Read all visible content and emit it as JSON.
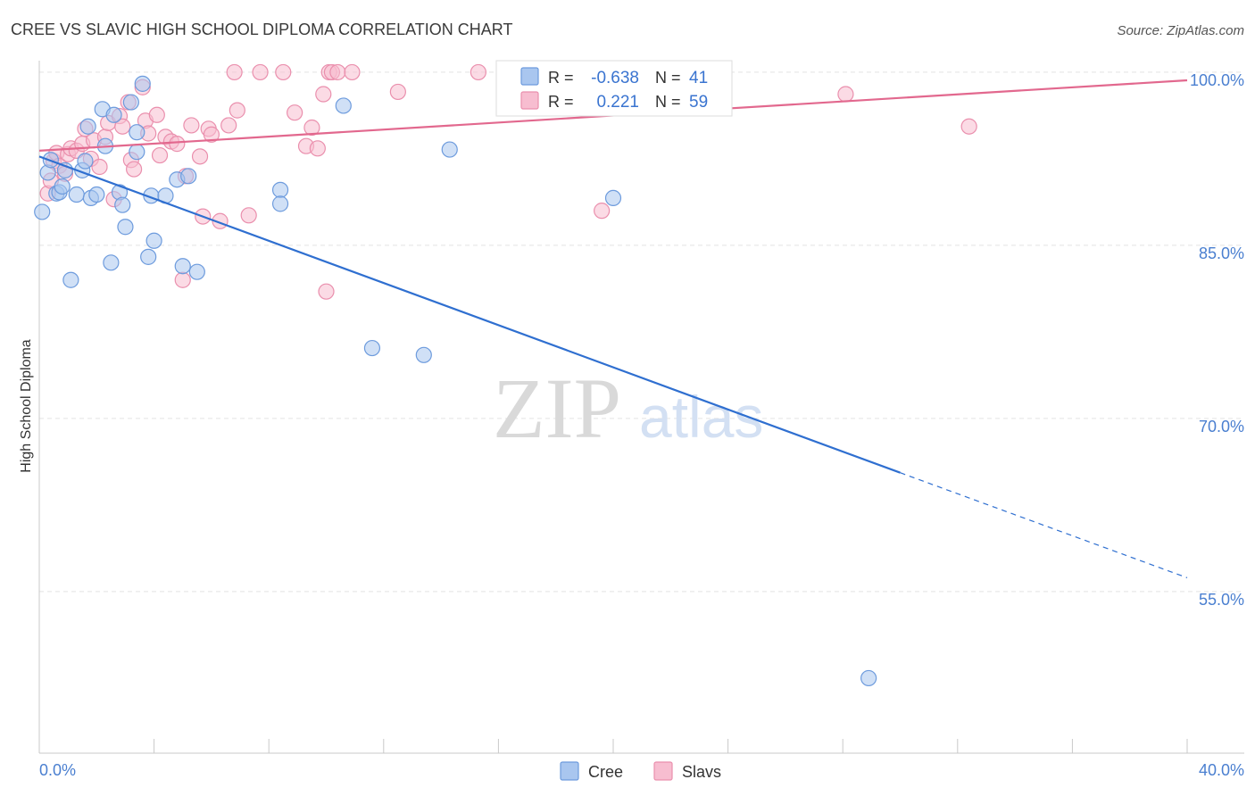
{
  "chart_data": {
    "type": "scatter",
    "title": "CREE VS SLAVIC HIGH SCHOOL DIPLOMA CORRELATION CHART",
    "source": "Source: ZipAtlas.com",
    "xlabel": "",
    "ylabel": "High School Diploma",
    "xlim": [
      0,
      40
    ],
    "ylim": [
      41,
      101
    ],
    "x_tick_labels": [
      "0.0%",
      "40.0%"
    ],
    "y_ticks": [
      55,
      70,
      85,
      100
    ],
    "y_tick_labels": [
      "55.0%",
      "70.0%",
      "85.0%",
      "100.0%"
    ],
    "watermark": {
      "zip": "ZIP",
      "atlas": "atlas"
    },
    "colors": {
      "cree_fill": "#a9c6ef",
      "cree_stroke": "#6d9bdd",
      "cree_line": "#2f6fd0",
      "slavs_fill": "#f7bdd0",
      "slavs_stroke": "#ea8fad",
      "slavs_line": "#e2688e",
      "grid": "#e3e3e3"
    },
    "legend": {
      "r_label": "R =",
      "n_label": "N =",
      "items": [
        {
          "series": "Cree",
          "r": "-0.638",
          "n": "41"
        },
        {
          "series": "Slavs",
          "r": "0.221",
          "n": "59"
        }
      ]
    },
    "series": [
      {
        "name": "Cree",
        "trend": {
          "x0": 0.0,
          "y0": 92.7,
          "x1": 30.0,
          "y1": 65.3,
          "dash_x1": 40.0,
          "dash_y1": 56.2
        },
        "points": [
          [
            0.1,
            87.9
          ],
          [
            0.3,
            91.3
          ],
          [
            0.4,
            92.4
          ],
          [
            0.6,
            89.5
          ],
          [
            0.7,
            89.6
          ],
          [
            0.8,
            90.1
          ],
          [
            0.9,
            91.5
          ],
          [
            1.1,
            82.0
          ],
          [
            1.3,
            89.4
          ],
          [
            1.5,
            91.5
          ],
          [
            1.6,
            92.3
          ],
          [
            1.7,
            95.3
          ],
          [
            1.8,
            89.1
          ],
          [
            2.0,
            89.4
          ],
          [
            2.2,
            96.8
          ],
          [
            2.3,
            93.6
          ],
          [
            2.5,
            83.5
          ],
          [
            2.6,
            96.3
          ],
          [
            2.8,
            89.6
          ],
          [
            2.9,
            88.5
          ],
          [
            3.0,
            86.6
          ],
          [
            3.2,
            97.4
          ],
          [
            3.4,
            93.1
          ],
          [
            3.4,
            94.8
          ],
          [
            3.6,
            99.0
          ],
          [
            3.8,
            84.0
          ],
          [
            3.9,
            89.3
          ],
          [
            4.0,
            85.4
          ],
          [
            4.4,
            89.3
          ],
          [
            4.8,
            90.7
          ],
          [
            5.0,
            83.2
          ],
          [
            5.2,
            91.0
          ],
          [
            5.5,
            82.7
          ],
          [
            8.4,
            89.8
          ],
          [
            8.4,
            88.6
          ],
          [
            10.6,
            97.1
          ],
          [
            11.6,
            76.1
          ],
          [
            13.4,
            75.5
          ],
          [
            14.3,
            93.3
          ],
          [
            20.0,
            89.1
          ],
          [
            28.9,
            47.5
          ]
        ]
      },
      {
        "name": "Slavs",
        "trend": {
          "x0": 0.0,
          "y0": 93.2,
          "x1": 40.0,
          "y1": 99.3
        },
        "points": [
          [
            0.3,
            89.5
          ],
          [
            0.4,
            90.6
          ],
          [
            0.5,
            92.3
          ],
          [
            0.6,
            93.0
          ],
          [
            0.7,
            91.9
          ],
          [
            0.9,
            91.2
          ],
          [
            1.0,
            92.9
          ],
          [
            1.1,
            93.4
          ],
          [
            1.3,
            93.2
          ],
          [
            1.5,
            93.8
          ],
          [
            1.6,
            95.1
          ],
          [
            1.8,
            92.5
          ],
          [
            1.9,
            94.1
          ],
          [
            2.1,
            91.8
          ],
          [
            2.3,
            94.4
          ],
          [
            2.4,
            95.6
          ],
          [
            2.6,
            89.0
          ],
          [
            2.8,
            96.2
          ],
          [
            2.9,
            95.3
          ],
          [
            3.1,
            97.4
          ],
          [
            3.2,
            92.4
          ],
          [
            3.3,
            91.6
          ],
          [
            3.6,
            98.7
          ],
          [
            3.7,
            95.8
          ],
          [
            3.8,
            94.7
          ],
          [
            4.1,
            96.3
          ],
          [
            4.2,
            92.8
          ],
          [
            4.4,
            94.4
          ],
          [
            4.6,
            94.0
          ],
          [
            4.8,
            93.8
          ],
          [
            5.0,
            82.0
          ],
          [
            5.1,
            91.0
          ],
          [
            5.3,
            95.4
          ],
          [
            5.6,
            92.7
          ],
          [
            5.7,
            87.5
          ],
          [
            5.9,
            95.1
          ],
          [
            6.0,
            94.6
          ],
          [
            6.3,
            87.1
          ],
          [
            6.6,
            95.4
          ],
          [
            6.9,
            96.7
          ],
          [
            7.3,
            87.6
          ],
          [
            6.8,
            100.0
          ],
          [
            7.7,
            100.0
          ],
          [
            8.5,
            100.0
          ],
          [
            8.9,
            96.5
          ],
          [
            9.3,
            93.6
          ],
          [
            9.5,
            95.2
          ],
          [
            9.7,
            93.4
          ],
          [
            9.9,
            98.1
          ],
          [
            10.0,
            81.0
          ],
          [
            10.1,
            100.0
          ],
          [
            10.2,
            100.0
          ],
          [
            10.4,
            100.0
          ],
          [
            10.9,
            100.0
          ],
          [
            12.5,
            98.3
          ],
          [
            15.3,
            100.0
          ],
          [
            19.6,
            88.0
          ],
          [
            28.1,
            98.1
          ],
          [
            32.4,
            95.3
          ]
        ]
      }
    ]
  }
}
